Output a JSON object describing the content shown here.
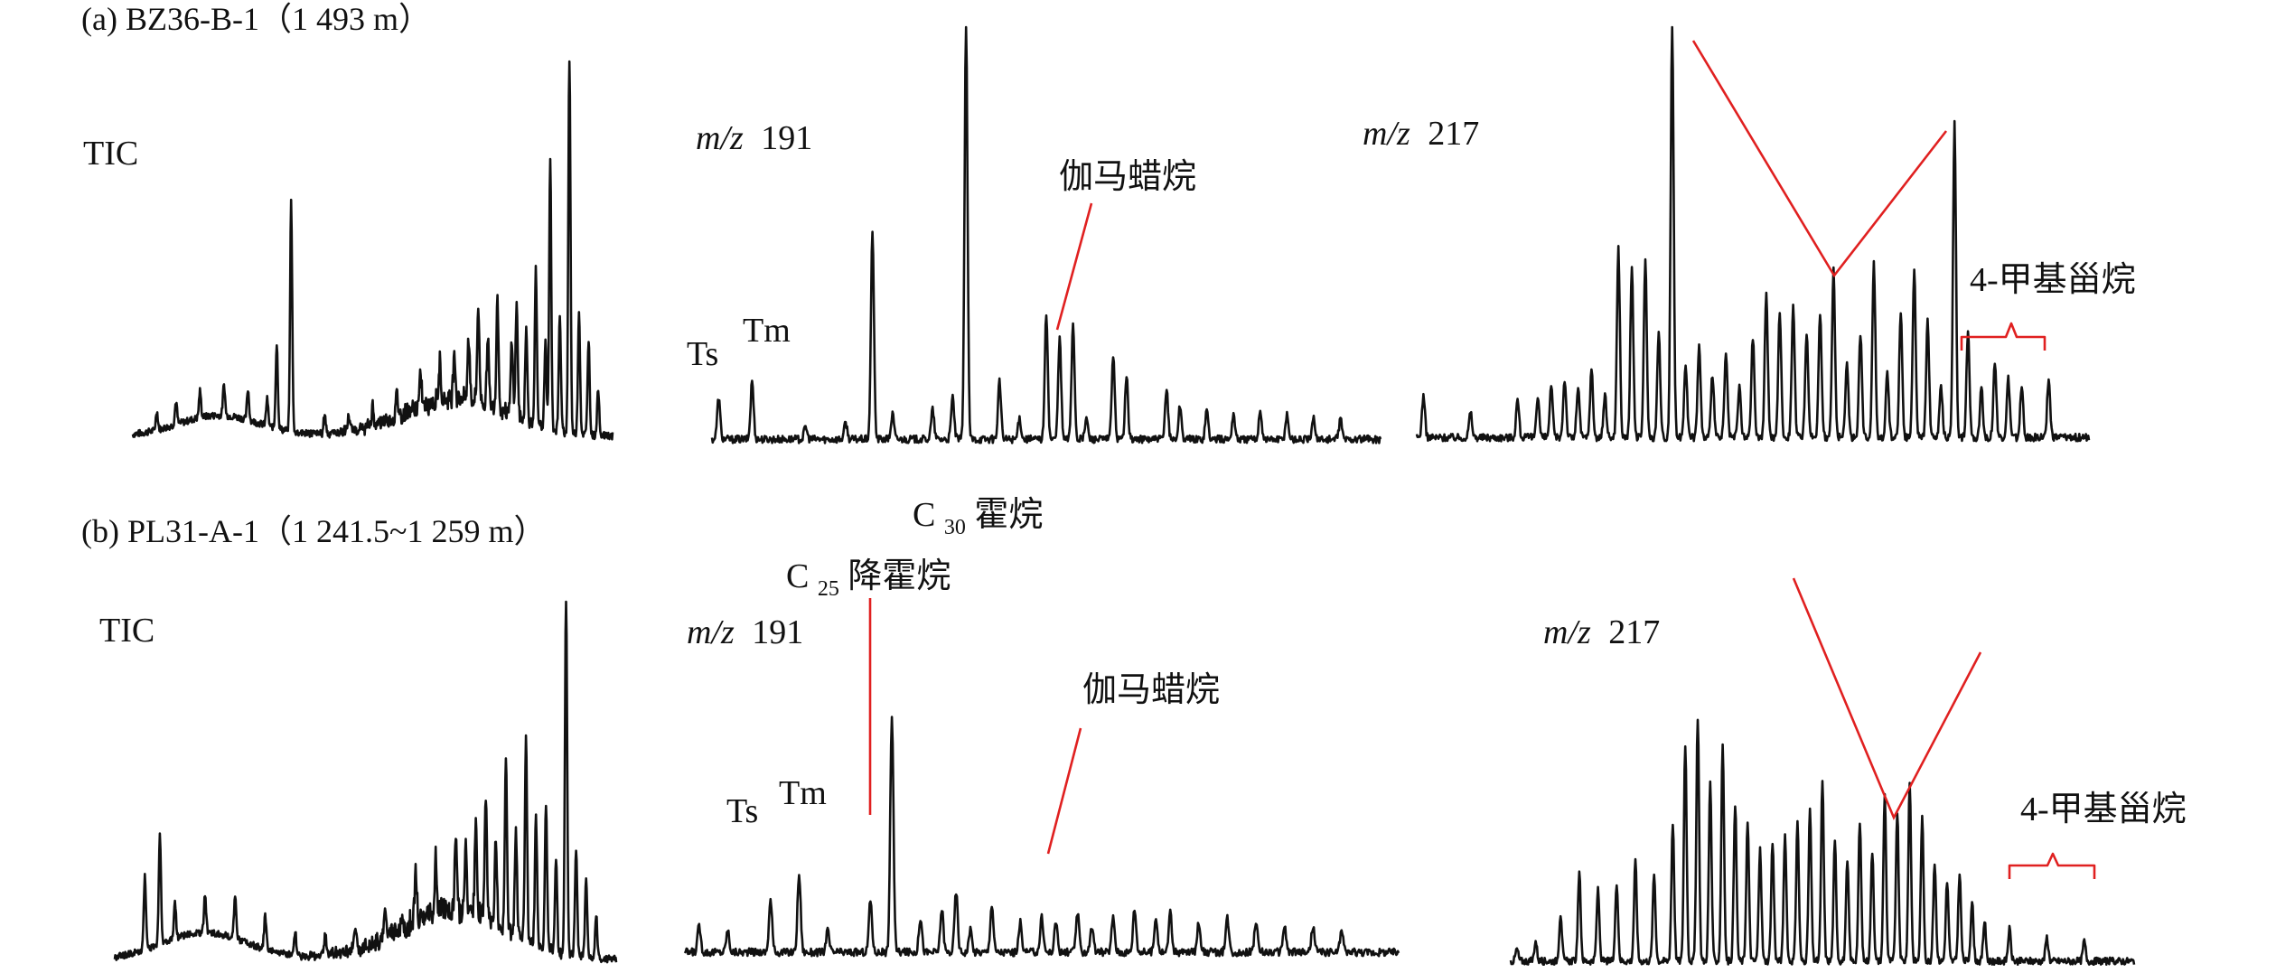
{
  "figure": {
    "panels": [
      {
        "id": "a",
        "title": "(a) BZ36-B-1（1 493 m）"
      },
      {
        "id": "b",
        "title": "(b) PL31-A-1（1 241.5~1 259 m）"
      }
    ]
  },
  "labels": {
    "tic": "TIC",
    "mz191_italic": "m/z",
    "mz191_value": "191",
    "mz217_italic": "m/z",
    "mz217_value": "217",
    "ts": "Ts",
    "tm": "Tm",
    "gammacerane": "伽马蜡烷",
    "methylsteranes": "4-甲基甾烷",
    "c30_prefix": "C",
    "c30_sub": "30",
    "c30_suffix": "霍烷",
    "c25_prefix": "C",
    "c25_sub": "25",
    "c25_suffix": "降霍烷"
  },
  "colors": {
    "trace": "#111111",
    "annotation": "#e02020"
  },
  "chart_data": [
    {
      "type": "line",
      "panel": "a",
      "trace": "TIC",
      "peaks": [
        [
          0.05,
          0.05
        ],
        [
          0.09,
          0.06
        ],
        [
          0.14,
          0.07
        ],
        [
          0.19,
          0.08
        ],
        [
          0.24,
          0.08
        ],
        [
          0.28,
          0.07
        ],
        [
          0.3,
          0.22
        ],
        [
          0.33,
          0.6
        ],
        [
          0.4,
          0.05
        ],
        [
          0.45,
          0.04
        ],
        [
          0.5,
          0.05
        ],
        [
          0.55,
          0.06
        ],
        [
          0.6,
          0.08
        ],
        [
          0.64,
          0.1
        ],
        [
          0.67,
          0.12
        ],
        [
          0.7,
          0.16
        ],
        [
          0.72,
          0.25
        ],
        [
          0.74,
          0.18
        ],
        [
          0.76,
          0.3
        ],
        [
          0.79,
          0.2
        ],
        [
          0.8,
          0.3
        ],
        [
          0.82,
          0.24
        ],
        [
          0.84,
          0.4
        ],
        [
          0.86,
          0.22
        ],
        [
          0.87,
          0.7
        ],
        [
          0.89,
          0.3
        ],
        [
          0.91,
          1.0
        ],
        [
          0.93,
          0.32
        ],
        [
          0.95,
          0.25
        ],
        [
          0.97,
          0.12
        ]
      ]
    },
    {
      "type": "line",
      "panel": "a",
      "trace": "m/z 191",
      "peaks": [
        [
          0.01,
          0.1
        ],
        [
          0.06,
          0.14
        ],
        [
          0.14,
          0.03
        ],
        [
          0.2,
          0.04
        ],
        [
          0.24,
          0.5
        ],
        [
          0.27,
          0.06
        ],
        [
          0.33,
          0.07
        ],
        [
          0.36,
          0.1
        ],
        [
          0.38,
          1.0
        ],
        [
          0.43,
          0.14
        ],
        [
          0.46,
          0.05
        ],
        [
          0.5,
          0.3
        ],
        [
          0.52,
          0.24
        ],
        [
          0.54,
          0.28
        ],
        [
          0.56,
          0.05
        ],
        [
          0.6,
          0.2
        ],
        [
          0.62,
          0.15
        ],
        [
          0.68,
          0.12
        ],
        [
          0.7,
          0.08
        ],
        [
          0.74,
          0.07
        ],
        [
          0.78,
          0.06
        ],
        [
          0.82,
          0.07
        ],
        [
          0.86,
          0.06
        ],
        [
          0.9,
          0.05
        ],
        [
          0.94,
          0.05
        ]
      ]
    },
    {
      "type": "line",
      "panel": "a",
      "trace": "m/z 217",
      "peaks": [
        [
          0.01,
          0.1
        ],
        [
          0.08,
          0.06
        ],
        [
          0.15,
          0.09
        ],
        [
          0.18,
          0.1
        ],
        [
          0.2,
          0.12
        ],
        [
          0.22,
          0.14
        ],
        [
          0.24,
          0.12
        ],
        [
          0.26,
          0.16
        ],
        [
          0.28,
          0.1
        ],
        [
          0.3,
          0.45
        ],
        [
          0.32,
          0.4
        ],
        [
          0.34,
          0.42
        ],
        [
          0.36,
          0.25
        ],
        [
          0.38,
          1.0
        ],
        [
          0.4,
          0.18
        ],
        [
          0.42,
          0.22
        ],
        [
          0.44,
          0.15
        ],
        [
          0.46,
          0.2
        ],
        [
          0.48,
          0.12
        ],
        [
          0.5,
          0.24
        ],
        [
          0.52,
          0.35
        ],
        [
          0.54,
          0.3
        ],
        [
          0.56,
          0.32
        ],
        [
          0.58,
          0.25
        ],
        [
          0.6,
          0.3
        ],
        [
          0.62,
          0.4
        ],
        [
          0.64,
          0.18
        ],
        [
          0.66,
          0.25
        ],
        [
          0.68,
          0.42
        ],
        [
          0.7,
          0.15
        ],
        [
          0.72,
          0.3
        ],
        [
          0.74,
          0.4
        ],
        [
          0.76,
          0.28
        ],
        [
          0.78,
          0.12
        ],
        [
          0.8,
          0.75
        ],
        [
          0.82,
          0.25
        ],
        [
          0.84,
          0.12
        ],
        [
          0.86,
          0.18
        ],
        [
          0.88,
          0.14
        ],
        [
          0.9,
          0.12
        ],
        [
          0.94,
          0.14
        ]
      ]
    },
    {
      "type": "line",
      "panel": "b",
      "trace": "TIC",
      "peaks": [
        [
          0.06,
          0.2
        ],
        [
          0.09,
          0.3
        ],
        [
          0.12,
          0.1
        ],
        [
          0.18,
          0.1
        ],
        [
          0.24,
          0.12
        ],
        [
          0.3,
          0.09
        ],
        [
          0.36,
          0.06
        ],
        [
          0.42,
          0.05
        ],
        [
          0.48,
          0.07
        ],
        [
          0.54,
          0.08
        ],
        [
          0.6,
          0.12
        ],
        [
          0.64,
          0.15
        ],
        [
          0.68,
          0.2
        ],
        [
          0.7,
          0.18
        ],
        [
          0.72,
          0.25
        ],
        [
          0.74,
          0.32
        ],
        [
          0.76,
          0.22
        ],
        [
          0.78,
          0.45
        ],
        [
          0.8,
          0.3
        ],
        [
          0.82,
          0.55
        ],
        [
          0.84,
          0.35
        ],
        [
          0.86,
          0.4
        ],
        [
          0.88,
          0.25
        ],
        [
          0.9,
          1.0
        ],
        [
          0.92,
          0.3
        ],
        [
          0.94,
          0.22
        ],
        [
          0.96,
          0.12
        ]
      ]
    },
    {
      "type": "line",
      "panel": "b",
      "trace": "m/z 191",
      "peaks": [
        [
          0.02,
          0.06
        ],
        [
          0.06,
          0.05
        ],
        [
          0.12,
          0.12
        ],
        [
          0.16,
          0.18
        ],
        [
          0.2,
          0.05
        ],
        [
          0.26,
          0.12
        ],
        [
          0.29,
          0.55
        ],
        [
          0.33,
          0.08
        ],
        [
          0.36,
          0.1
        ],
        [
          0.38,
          0.14
        ],
        [
          0.4,
          0.05
        ],
        [
          0.43,
          0.11
        ],
        [
          0.47,
          0.07
        ],
        [
          0.5,
          0.08
        ],
        [
          0.52,
          0.07
        ],
        [
          0.55,
          0.09
        ],
        [
          0.57,
          0.06
        ],
        [
          0.6,
          0.08
        ],
        [
          0.63,
          0.1
        ],
        [
          0.66,
          0.08
        ],
        [
          0.68,
          0.09
        ],
        [
          0.72,
          0.07
        ],
        [
          0.76,
          0.08
        ],
        [
          0.8,
          0.07
        ],
        [
          0.84,
          0.06
        ],
        [
          0.88,
          0.06
        ],
        [
          0.92,
          0.05
        ]
      ]
    },
    {
      "type": "line",
      "panel": "b",
      "trace": "m/z 217",
      "peaks": [
        [
          0.01,
          0.03
        ],
        [
          0.04,
          0.05
        ],
        [
          0.08,
          0.12
        ],
        [
          0.11,
          0.22
        ],
        [
          0.14,
          0.18
        ],
        [
          0.17,
          0.2
        ],
        [
          0.2,
          0.25
        ],
        [
          0.23,
          0.22
        ],
        [
          0.26,
          0.35
        ],
        [
          0.28,
          0.55
        ],
        [
          0.3,
          0.62
        ],
        [
          0.32,
          0.45
        ],
        [
          0.34,
          0.55
        ],
        [
          0.36,
          0.4
        ],
        [
          0.38,
          0.35
        ],
        [
          0.4,
          0.28
        ],
        [
          0.42,
          0.3
        ],
        [
          0.44,
          0.32
        ],
        [
          0.46,
          0.35
        ],
        [
          0.48,
          0.38
        ],
        [
          0.5,
          0.45
        ],
        [
          0.52,
          0.3
        ],
        [
          0.54,
          0.25
        ],
        [
          0.56,
          0.35
        ],
        [
          0.58,
          0.28
        ],
        [
          0.6,
          0.42
        ],
        [
          0.62,
          0.38
        ],
        [
          0.64,
          0.45
        ],
        [
          0.66,
          0.36
        ],
        [
          0.68,
          0.25
        ],
        [
          0.7,
          0.2
        ],
        [
          0.72,
          0.22
        ],
        [
          0.74,
          0.15
        ],
        [
          0.76,
          0.1
        ],
        [
          0.8,
          0.08
        ],
        [
          0.86,
          0.06
        ],
        [
          0.92,
          0.05
        ]
      ]
    }
  ]
}
